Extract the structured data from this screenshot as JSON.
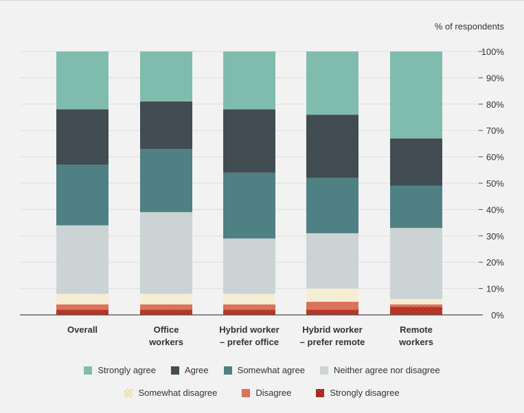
{
  "chart_data": {
    "type": "bar",
    "stacked": true,
    "orientation": "vertical",
    "unit_label": "% of respondents",
    "ylim": [
      0,
      100
    ],
    "yticks": [
      0,
      10,
      20,
      30,
      40,
      50,
      60,
      70,
      80,
      90,
      100
    ],
    "ytick_suffix": "%",
    "y_axis_position": "right",
    "grid": true,
    "legend_position": "bottom",
    "categories": [
      [
        "Overall"
      ],
      [
        "Office",
        "workers"
      ],
      [
        "Hybrid worker",
        "– prefer office"
      ],
      [
        "Hybrid worker",
        "– prefer remote"
      ],
      [
        "Remote",
        "workers"
      ]
    ],
    "series": [
      {
        "name": "Strongly disagree",
        "color": "#c23a2b",
        "pattern": "hatch",
        "values": [
          2,
          2,
          2,
          2,
          3
        ]
      },
      {
        "name": "Disagree",
        "color": "#d9735a",
        "values": [
          2,
          2,
          2,
          3,
          1
        ]
      },
      {
        "name": "Somewhat disagree",
        "color": "#f5ecd2",
        "pattern": "hatch",
        "values": [
          4,
          4,
          4,
          5,
          2
        ]
      },
      {
        "name": "Neither agree nor disagree",
        "color": "#ccd3d4",
        "values": [
          26,
          31,
          21,
          21,
          27
        ]
      },
      {
        "name": "Somewhat agree",
        "color": "#4f8083",
        "values": [
          23,
          24,
          25,
          21,
          16
        ]
      },
      {
        "name": "Agree",
        "color": "#414d52",
        "values": [
          21,
          18,
          24,
          24,
          18
        ]
      },
      {
        "name": "Strongly agree",
        "color": "#80bcad",
        "values": [
          22,
          19,
          22,
          24,
          33
        ]
      }
    ],
    "legend_rows": [
      [
        "Strongly agree",
        "Agree",
        "Somewhat agree",
        "Neither agree nor disagree"
      ],
      [
        "Somewhat disagree",
        "Disagree",
        "Strongly disagree"
      ]
    ]
  }
}
